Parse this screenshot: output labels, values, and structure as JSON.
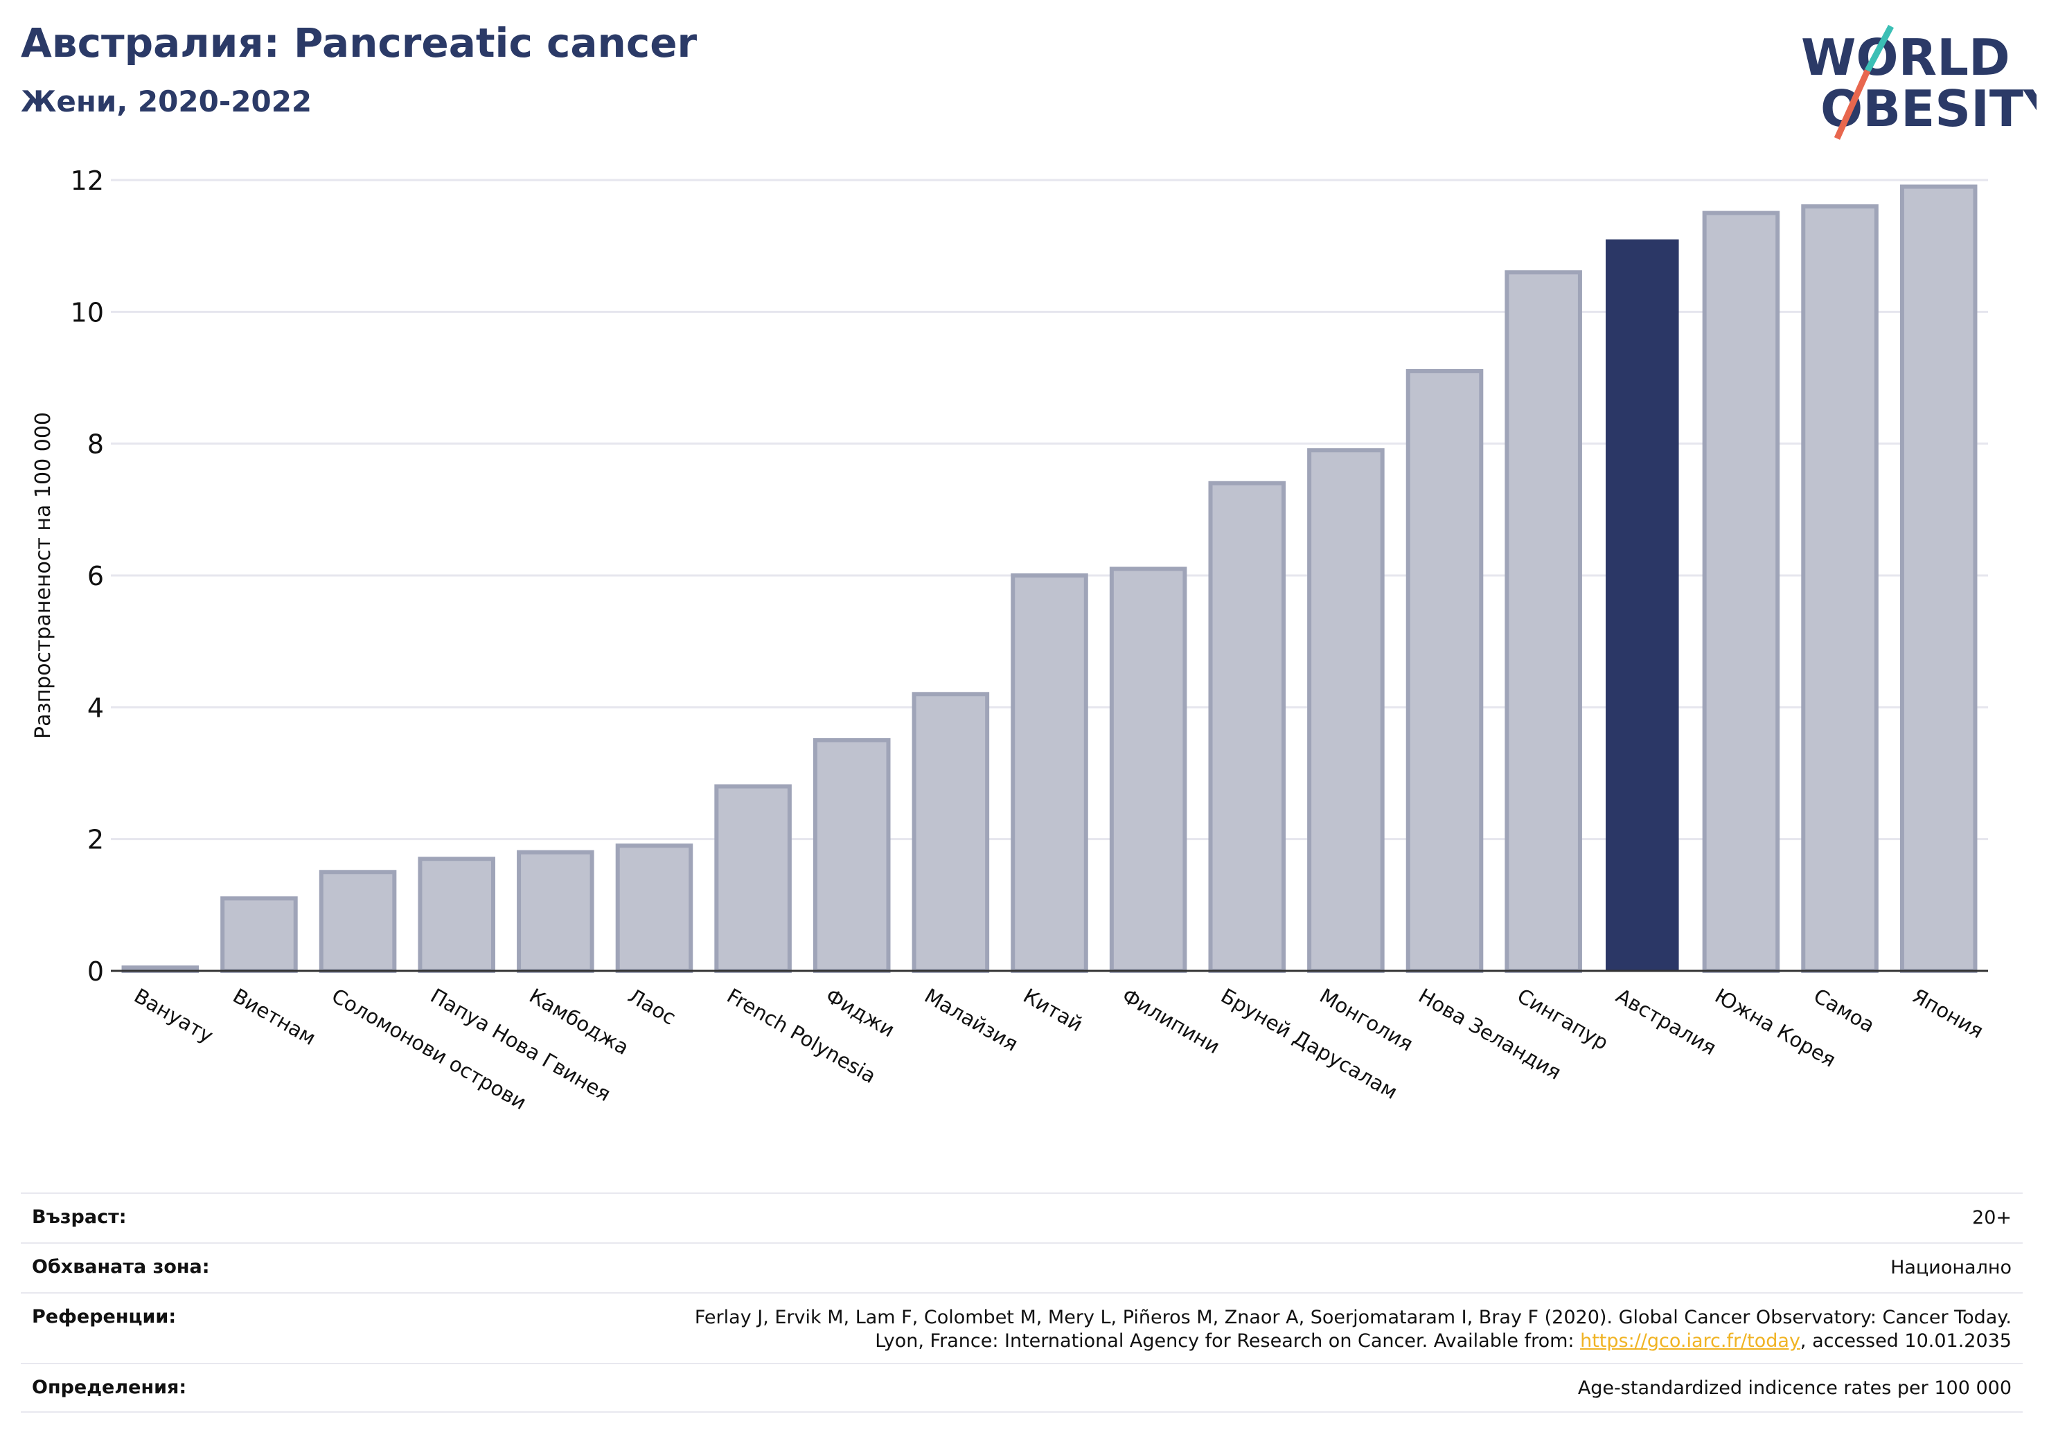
{
  "header": {
    "title": "Австралия: Pancreatic cancer",
    "subtitle": "Жени, 2020-2022"
  },
  "logo": {
    "line1": "WORLD",
    "line2": "OBESITY",
    "text_color": "#2b3a67",
    "slash_colors": [
      "#3bbfb5",
      "#e8674e"
    ]
  },
  "chart_data": {
    "type": "bar",
    "title": "Австралия: Pancreatic cancer",
    "subtitle": "Жени, 2020-2022",
    "ylabel": "Разпространеност  на 100 000",
    "xlabel": "",
    "ylim": [
      0,
      12
    ],
    "yticks": [
      0,
      2,
      4,
      6,
      8,
      10,
      12
    ],
    "grid": true,
    "categories": [
      "Вануату",
      "Виетнам",
      "Соломонови острови",
      "Папуа Нова Гвинея",
      "Камбоджа",
      "Лаос",
      "French Polynesia",
      "Фиджи",
      "Малайзия",
      "Китай",
      "Филипини",
      "Бруней Дарусалам",
      "Монголия",
      "Нова Зеландия",
      "Сингапур",
      "Австралия",
      "Южна Корея",
      "Самоа",
      "Япония"
    ],
    "values": [
      0.05,
      1.1,
      1.5,
      1.7,
      1.8,
      1.9,
      2.8,
      3.5,
      4.2,
      6.0,
      6.1,
      7.4,
      7.9,
      9.1,
      10.6,
      11.1,
      11.5,
      11.6,
      11.9
    ],
    "highlight": "Австралия",
    "colors": {
      "bar": "#bfc2cf",
      "bar_edge": "#9fa4b8",
      "highlight": "#2b3766",
      "grid": "#e6e6ee",
      "axis": "#333333"
    }
  },
  "info": [
    {
      "label": "Възраст:",
      "value": "20+"
    },
    {
      "label": "Обхваната зона:",
      "value": "Национално"
    },
    {
      "label": "Референции:",
      "value_line1": "Ferlay J, Ervik M, Lam F, Colombet M, Mery L, Piñeros M, Znaor A, Soerjomataram I, Bray F (2020). Global Cancer Observatory: Cancer Today.",
      "value_line2_pre": "Lyon, France: International Agency for Research on Cancer. Available from: ",
      "link": "https://gco.iarc.fr/today",
      "value_line2_post": ", accessed 10.01.2035"
    },
    {
      "label": "Определения:",
      "value": "Age-standardized indicence rates per 100 000"
    }
  ]
}
